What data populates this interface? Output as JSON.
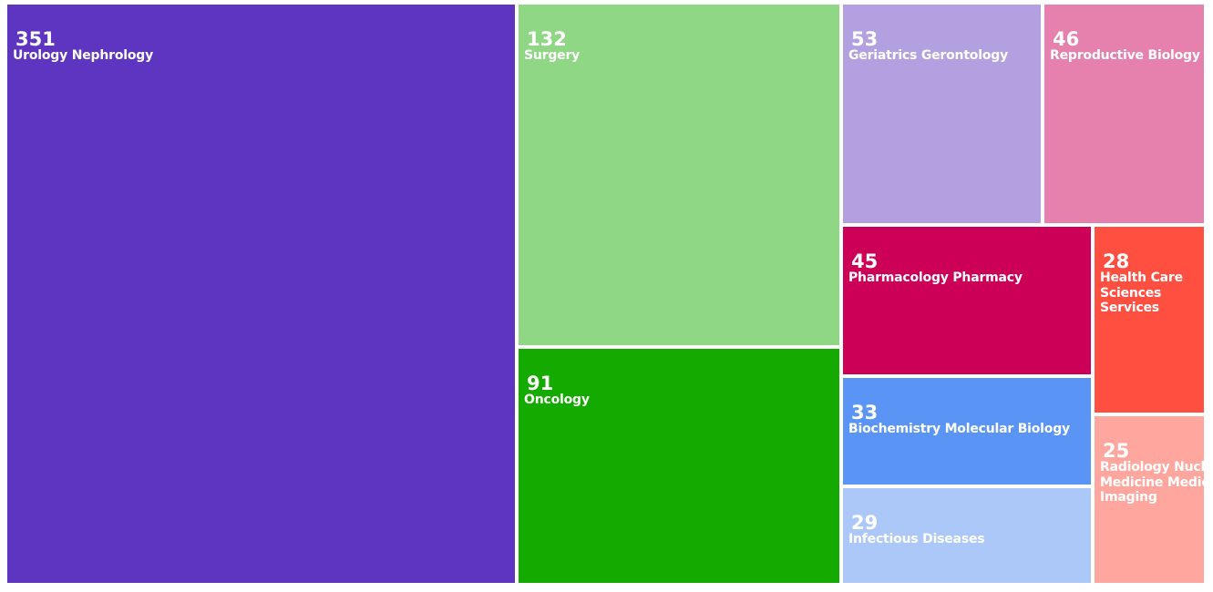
{
  "chart_data": {
    "type": "treemap",
    "title": "",
    "items": [
      {
        "label": "Urology Nephrology",
        "value": 351,
        "color": "#5d35c0"
      },
      {
        "label": "Surgery",
        "value": 132,
        "color": "#8fd685"
      },
      {
        "label": "Oncology",
        "value": 91,
        "color": "#14aa00"
      },
      {
        "label": "Geriatrics Gerontology",
        "value": 53,
        "color": "#b3a0e0"
      },
      {
        "label": "Reproductive Biology",
        "value": 46,
        "color": "#e680ad"
      },
      {
        "label": "Pharmacology Pharmacy",
        "value": 45,
        "color": "#cd0057"
      },
      {
        "label": "Biochemistry Molecular Biology",
        "value": 33,
        "color": "#5a95f5"
      },
      {
        "label": "Infectious Diseases",
        "value": 29,
        "color": "#abc8f8"
      },
      {
        "label": "Health Care Sciences Services",
        "value": 28,
        "color": "#ff4f40"
      },
      {
        "label": "Radiology Nuclear Medicine Medical Imaging",
        "value": 25,
        "color": "#ffa79e"
      }
    ]
  }
}
